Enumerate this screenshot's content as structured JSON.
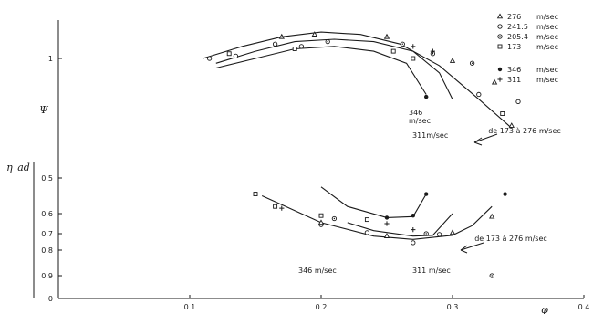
{
  "chart_data": {
    "type": "line",
    "x_axis": {
      "label": "φ",
      "range": [
        0.0,
        0.4
      ],
      "ticks": [
        {
          "v": 0.1,
          "t": "0.1"
        },
        {
          "v": 0.2,
          "t": "0.2"
        },
        {
          "v": 0.3,
          "t": "0.3"
        },
        {
          "v": 0.4,
          "t": "0.4"
        }
      ]
    },
    "y_axis_psi": {
      "label": "Ψ",
      "ticks": [
        {
          "v": 1.0,
          "t": "1"
        }
      ]
    },
    "y_axis_eta": {
      "label": "η_ad",
      "ticks": [
        {
          "v": 0.0,
          "t": "0"
        },
        {
          "v": 0.5,
          "t": "0.5"
        },
        {
          "v": 0.6,
          "t": "0.6"
        },
        {
          "v": 0.7,
          "t": "0.7"
        },
        {
          "v": 0.8,
          "t": "0.8"
        },
        {
          "v": 0.9,
          "t": "0.9"
        }
      ]
    },
    "legend": {
      "position": "top-right",
      "entries": [
        {
          "marker": "triangle",
          "label": "276",
          "unit": "m/sec"
        },
        {
          "marker": "circle",
          "label": "241.5",
          "unit": "m/sec"
        },
        {
          "marker": "dotted-circle",
          "label": "205.4",
          "unit": "m/sec"
        },
        {
          "marker": "square",
          "label": "173",
          "unit": "m/sec"
        },
        {
          "marker": "filled-circle",
          "label": "346",
          "unit": "m/sec"
        },
        {
          "marker": "plus",
          "label": "311",
          "unit": "m/sec"
        }
      ]
    },
    "psi_curves": [
      {
        "x": [
          0.11,
          0.14,
          0.17,
          0.2,
          0.23,
          0.26,
          0.29,
          0.32,
          0.345
        ],
        "y": [
          1.0,
          1.05,
          1.09,
          1.11,
          1.1,
          1.06,
          0.97,
          0.83,
          0.71
        ]
      },
      {
        "x": [
          0.12,
          0.15,
          0.18,
          0.21,
          0.24,
          0.27,
          0.29,
          0.3
        ],
        "y": [
          0.98,
          1.03,
          1.07,
          1.08,
          1.07,
          1.03,
          0.94,
          0.83
        ]
      },
      {
        "x": [
          0.12,
          0.15,
          0.18,
          0.21,
          0.24,
          0.265,
          0.28
        ],
        "y": [
          0.96,
          1.0,
          1.04,
          1.05,
          1.03,
          0.98,
          0.85
        ]
      }
    ],
    "psi_points": [
      {
        "m": "circle",
        "x": 0.115,
        "y": 1.0
      },
      {
        "m": "circle",
        "x": 0.135,
        "y": 1.01
      },
      {
        "m": "circle",
        "x": 0.165,
        "y": 1.06
      },
      {
        "m": "circle",
        "x": 0.185,
        "y": 1.05
      },
      {
        "m": "circle",
        "x": 0.32,
        "y": 0.85
      },
      {
        "m": "circle",
        "x": 0.35,
        "y": 0.82
      },
      {
        "m": "triangle",
        "x": 0.17,
        "y": 1.09
      },
      {
        "m": "triangle",
        "x": 0.195,
        "y": 1.1
      },
      {
        "m": "triangle",
        "x": 0.25,
        "y": 1.09
      },
      {
        "m": "triangle",
        "x": 0.3,
        "y": 0.99
      },
      {
        "m": "triangle",
        "x": 0.332,
        "y": 0.9
      },
      {
        "m": "triangle",
        "x": 0.345,
        "y": 0.72
      },
      {
        "m": "dotted-circle",
        "x": 0.205,
        "y": 1.07
      },
      {
        "m": "dotted-circle",
        "x": 0.262,
        "y": 1.06
      },
      {
        "m": "dotted-circle",
        "x": 0.285,
        "y": 1.02
      },
      {
        "m": "dotted-circle",
        "x": 0.315,
        "y": 0.98
      },
      {
        "m": "square",
        "x": 0.13,
        "y": 1.02
      },
      {
        "m": "square",
        "x": 0.18,
        "y": 1.04
      },
      {
        "m": "square",
        "x": 0.255,
        "y": 1.03
      },
      {
        "m": "square",
        "x": 0.27,
        "y": 1.0
      },
      {
        "m": "square",
        "x": 0.338,
        "y": 0.77
      },
      {
        "m": "plus",
        "x": 0.27,
        "y": 1.05
      },
      {
        "m": "plus",
        "x": 0.285,
        "y": 1.03
      },
      {
        "m": "filled-circle",
        "x": 0.28,
        "y": 0.84
      }
    ],
    "eta_curves": [
      {
        "x": [
          0.155,
          0.17,
          0.2,
          0.24,
          0.27,
          0.3,
          0.315,
          0.33
        ],
        "y": [
          0.55,
          0.575,
          0.645,
          0.715,
          0.735,
          0.71,
          0.66,
          0.58
        ]
      },
      {
        "x": [
          0.22,
          0.24,
          0.27,
          0.285,
          0.3
        ],
        "y": [
          0.645,
          0.685,
          0.715,
          0.71,
          0.6
        ]
      },
      {
        "x": [
          0.2,
          0.22,
          0.25,
          0.27,
          0.28
        ],
        "y": [
          0.525,
          0.58,
          0.62,
          0.615,
          0.545
        ]
      }
    ],
    "eta_points": [
      {
        "m": "circle",
        "x": 0.2,
        "y": 0.655
      },
      {
        "m": "circle",
        "x": 0.235,
        "y": 0.695
      },
      {
        "m": "circle",
        "x": 0.27,
        "y": 0.755
      },
      {
        "m": "circle",
        "x": 0.29,
        "y": 0.705
      },
      {
        "m": "triangle",
        "x": 0.2,
        "y": 0.645
      },
      {
        "m": "triangle",
        "x": 0.25,
        "y": 0.715
      },
      {
        "m": "triangle",
        "x": 0.3,
        "y": 0.695
      },
      {
        "m": "triangle",
        "x": 0.33,
        "y": 0.615
      },
      {
        "m": "dotted-circle",
        "x": 0.21,
        "y": 0.625
      },
      {
        "m": "dotted-circle",
        "x": 0.28,
        "y": 0.7
      },
      {
        "m": "square",
        "x": 0.15,
        "y": 0.545
      },
      {
        "m": "square",
        "x": 0.165,
        "y": 0.58
      },
      {
        "m": "square",
        "x": 0.2,
        "y": 0.61
      },
      {
        "m": "square",
        "x": 0.235,
        "y": 0.63
      },
      {
        "m": "plus",
        "x": 0.17,
        "y": 0.585
      },
      {
        "m": "plus",
        "x": 0.25,
        "y": 0.65
      },
      {
        "m": "plus",
        "x": 0.27,
        "y": 0.68
      },
      {
        "m": "filled-circle",
        "x": 0.25,
        "y": 0.62
      },
      {
        "m": "filled-circle",
        "x": 0.27,
        "y": 0.61
      },
      {
        "m": "filled-circle",
        "x": 0.28,
        "y": 0.545
      },
      {
        "m": "filled-circle",
        "x": 0.34,
        "y": 0.545
      },
      {
        "m": "dotted-circle",
        "x": 0.33,
        "y": 0.94
      }
    ],
    "annotations": [
      {
        "lines": [
          "346",
          "m/sec"
        ],
        "x": 0.275,
        "y": 0.79
      },
      {
        "lines": [
          "311m/sec"
        ],
        "x": 0.3,
        "y": 0.79
      },
      {
        "lines": [
          "de 173 à 276 m/sec"
        ],
        "x": 0.36,
        "y": 0.73
      },
      {
        "lines": [
          "346 m/sec"
        ],
        "x": 0.2,
        "y": 0.49
      },
      {
        "lines": [
          "311 m/sec"
        ],
        "x": 0.31,
        "y": 0.49
      },
      {
        "lines": [
          "de 173 à 276 m/sec"
        ],
        "x": 0.36,
        "y": 0.605
      }
    ]
  }
}
